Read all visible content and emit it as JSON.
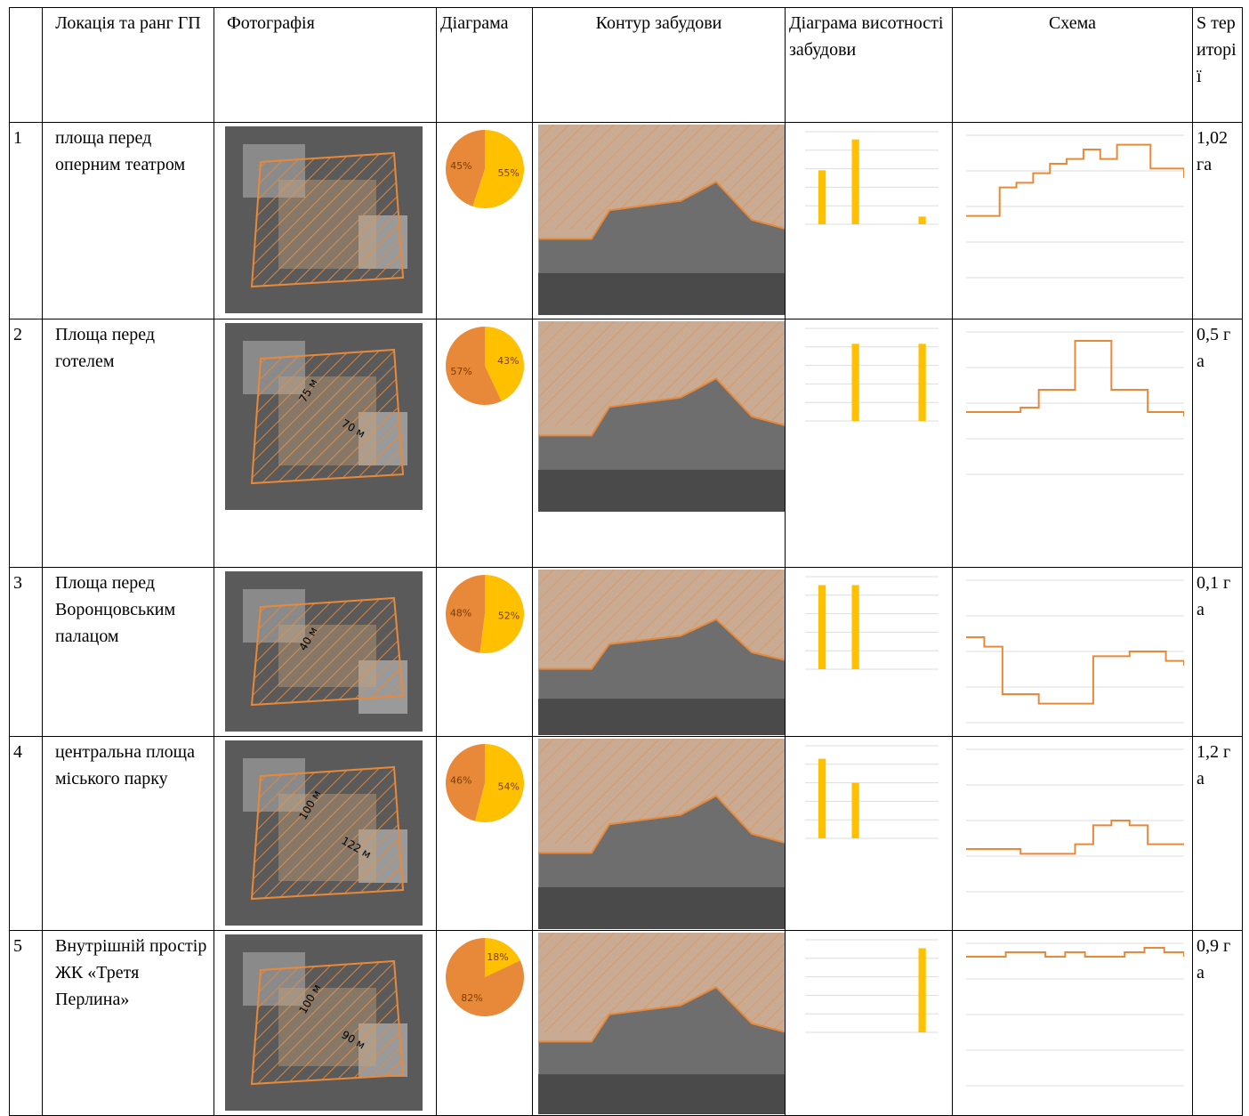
{
  "header": [
    "Локація та ранг ГП",
    "Фотографія",
    "Діаграма",
    "Контур забудови",
    "Діаграма висотності забудови",
    "Схема",
    "S території"
  ],
  "pie_colors": [
    "#e8893a",
    "#ffc000"
  ],
  "bar_color": "#ffc000",
  "profile_color": "#e8893a",
  "rows": [
    {
      "num": "1",
      "location": "площа перед оперним театром",
      "dims": [],
      "pie": {
        "values": [
          45,
          55
        ],
        "labels": [
          "45%",
          "55%"
        ]
      },
      "bars": {
        "values": [
          35,
          55,
          0,
          5
        ],
        "ylim": [
          0,
          60
        ]
      },
      "profile": {
        "values": [
          13,
          13,
          19,
          20,
          22,
          24,
          25,
          27,
          25,
          28,
          28,
          23,
          23,
          21
        ],
        "ylim": [
          0,
          30
        ]
      },
      "area": "1,02 га"
    },
    {
      "num": "2",
      "location": "Площа перед готелем",
      "dims": [
        "75 м",
        "70 м"
      ],
      "pie": {
        "values": [
          57,
          43
        ],
        "labels": [
          "57%",
          "43%"
        ]
      },
      "bars": {
        "values": [
          0,
          50,
          0,
          50
        ],
        "ylim": [
          0,
          60
        ]
      },
      "profile": {
        "values": [
          14,
          14,
          14,
          15,
          19,
          19,
          30,
          30,
          19,
          19,
          14,
          14,
          13
        ],
        "ylim": [
          0,
          32
        ]
      },
      "area": "0,5 га"
    },
    {
      "num": "3",
      "location": "Площа перед Воронцовським палацом",
      "dims": [
        "40 м"
      ],
      "pie": {
        "values": [
          48,
          52
        ],
        "labels": [
          "48%",
          "52%"
        ]
      },
      "bars": {
        "values": [
          50,
          50,
          0,
          0
        ],
        "ylim": [
          0,
          55
        ]
      },
      "profile": {
        "values": [
          18,
          16,
          6,
          6,
          4,
          4,
          4,
          14,
          14,
          15,
          15,
          13,
          12
        ],
        "ylim": [
          0,
          30
        ]
      },
      "area": "0,1 га"
    },
    {
      "num": "4",
      "location": "центральна площа міського парку",
      "dims": [
        "100 м",
        "122 м"
      ],
      "pie": {
        "values": [
          46,
          54
        ],
        "labels": [
          "46%",
          "54%"
        ]
      },
      "bars": {
        "values": [
          43,
          30,
          0,
          0
        ],
        "ylim": [
          0,
          50
        ]
      },
      "profile": {
        "values": [
          9,
          9,
          9,
          8,
          8,
          8,
          10,
          14,
          15,
          14,
          10,
          10,
          10
        ],
        "ylim": [
          0,
          30
        ]
      },
      "area": "1,2 га"
    },
    {
      "num": "5",
      "location": "Внутрішній простір ЖК «Третя Перлина»",
      "dims": [
        "100 м",
        "90 м"
      ],
      "pie": {
        "values": [
          82,
          18
        ],
        "labels": [
          "82%",
          "18%"
        ]
      },
      "bars": {
        "values": [
          0,
          0,
          0,
          100
        ],
        "ylim": [
          0,
          110
        ]
      },
      "profile": {
        "values": [
          29,
          29,
          30,
          30,
          29,
          30,
          29,
          29,
          30,
          31,
          30,
          29
        ],
        "ylim": [
          0,
          32
        ]
      },
      "area": "0,9 га"
    }
  ]
}
